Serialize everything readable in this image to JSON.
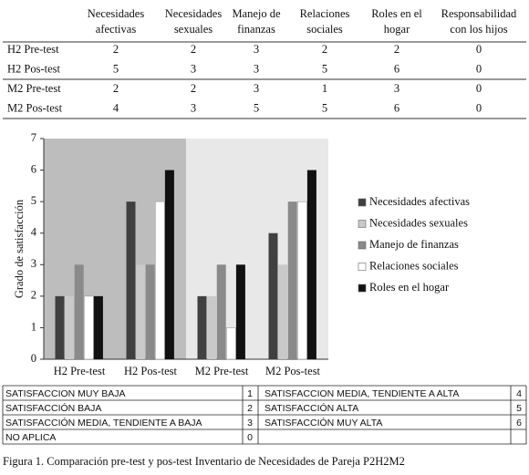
{
  "table": {
    "columns": [
      [
        "Necesidades",
        "afectivas"
      ],
      [
        "Necesidades",
        "sexuales"
      ],
      [
        "Manejo de",
        "finanzas"
      ],
      [
        "Relaciones",
        "sociales"
      ],
      [
        "Roles en el",
        "hogar"
      ],
      [
        "Responsabilidad",
        "con los hijos"
      ]
    ],
    "rows": [
      {
        "label": "H2 Pre-test",
        "values": [
          2,
          2,
          3,
          2,
          2,
          0
        ]
      },
      {
        "label": "H2 Pos-test",
        "values": [
          5,
          3,
          3,
          5,
          6,
          0
        ]
      },
      {
        "label": "M2 Pre-test",
        "values": [
          2,
          2,
          3,
          1,
          3,
          0
        ]
      },
      {
        "label": "M2 Pos-test",
        "values": [
          4,
          3,
          5,
          5,
          6,
          0
        ]
      }
    ]
  },
  "chart_data": {
    "type": "bar",
    "y_label": "Grado de satisfacción",
    "categories": [
      "H2 Pre-test",
      "H2 Pos-test",
      "M2 Pre-test",
      "M2 Pos-test"
    ],
    "series": [
      {
        "name": "Necesidades afectivas",
        "color": "#404040",
        "values": [
          2,
          5,
          2,
          4
        ]
      },
      {
        "name": "Necesidades sexuales",
        "color": "#c9c9c9",
        "values": [
          2,
          3,
          2,
          3
        ]
      },
      {
        "name": "Manejo de finanzas",
        "color": "#8a8a8a",
        "values": [
          3,
          3,
          3,
          5
        ]
      },
      {
        "name": "Relaciones sociales",
        "color": "#ffffff",
        "values": [
          2,
          5,
          1,
          5
        ]
      },
      {
        "name": "Roles en el hogar",
        "color": "#111111",
        "values": [
          2,
          6,
          3,
          6
        ]
      }
    ],
    "ylim": [
      0,
      7
    ],
    "yticks": [
      0,
      1,
      2,
      3,
      4,
      5,
      6,
      7
    ]
  },
  "scale_table": {
    "rows": [
      [
        {
          "label": "SATISFACCION MUY  BAJA",
          "value": 1
        },
        {
          "label": "SATISFACCION MEDIA, TENDIENTE A ALTA",
          "value": 4
        }
      ],
      [
        {
          "label": "SATISFACCIÓN  BAJA",
          "value": 2
        },
        {
          "label": "SATISFACCIÓN ALTA",
          "value": 5
        }
      ],
      [
        {
          "label": "SATISFACCIÓN MEDIA, TENDIENTE A BAJA",
          "value": 3
        },
        {
          "label": "SATISFACCIÓN MUY ALTA",
          "value": 6
        }
      ],
      [
        {
          "label": "NO APLICA",
          "value": 0
        }
      ]
    ]
  },
  "caption": "Figura 1. Comparación pre-test y pos-test Inventario de Necesidades de Pareja P2H2M2"
}
